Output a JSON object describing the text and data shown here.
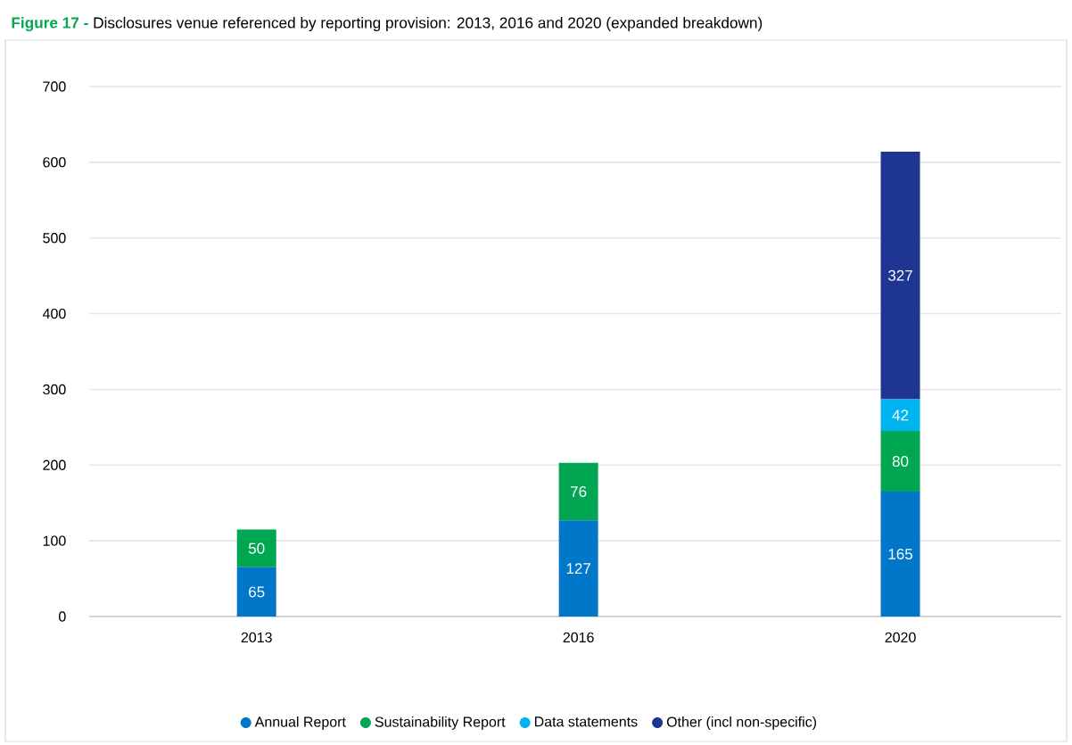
{
  "chart_data": {
    "type": "bar",
    "stacked": true,
    "title": "**Figure 17 -** Disclosures venue referenced by reporting provision: 2013, 2016 and 2020 (expanded breakdown)",
    "categories": [
      "2013",
      "2016",
      "2020"
    ],
    "series": [
      {
        "name": "Annual Report",
        "color": "#0077c8",
        "values": [
          65,
          127,
          165
        ]
      },
      {
        "name": "Sustainability Report",
        "color": "#00a651",
        "values": [
          50,
          76,
          80
        ]
      },
      {
        "name": "Data statements",
        "color": "#00b5ef",
        "values": [
          null,
          null,
          42
        ]
      },
      {
        "name": "Other (incl non-specific)",
        "color": "#1e3591",
        "values": [
          null,
          null,
          327
        ]
      }
    ],
    "ylim": [
      0,
      700
    ],
    "yticks": [
      0,
      100,
      200,
      300,
      400,
      500,
      600,
      700
    ],
    "grid": "y",
    "legend": "bottom",
    "data_labels": true
  }
}
